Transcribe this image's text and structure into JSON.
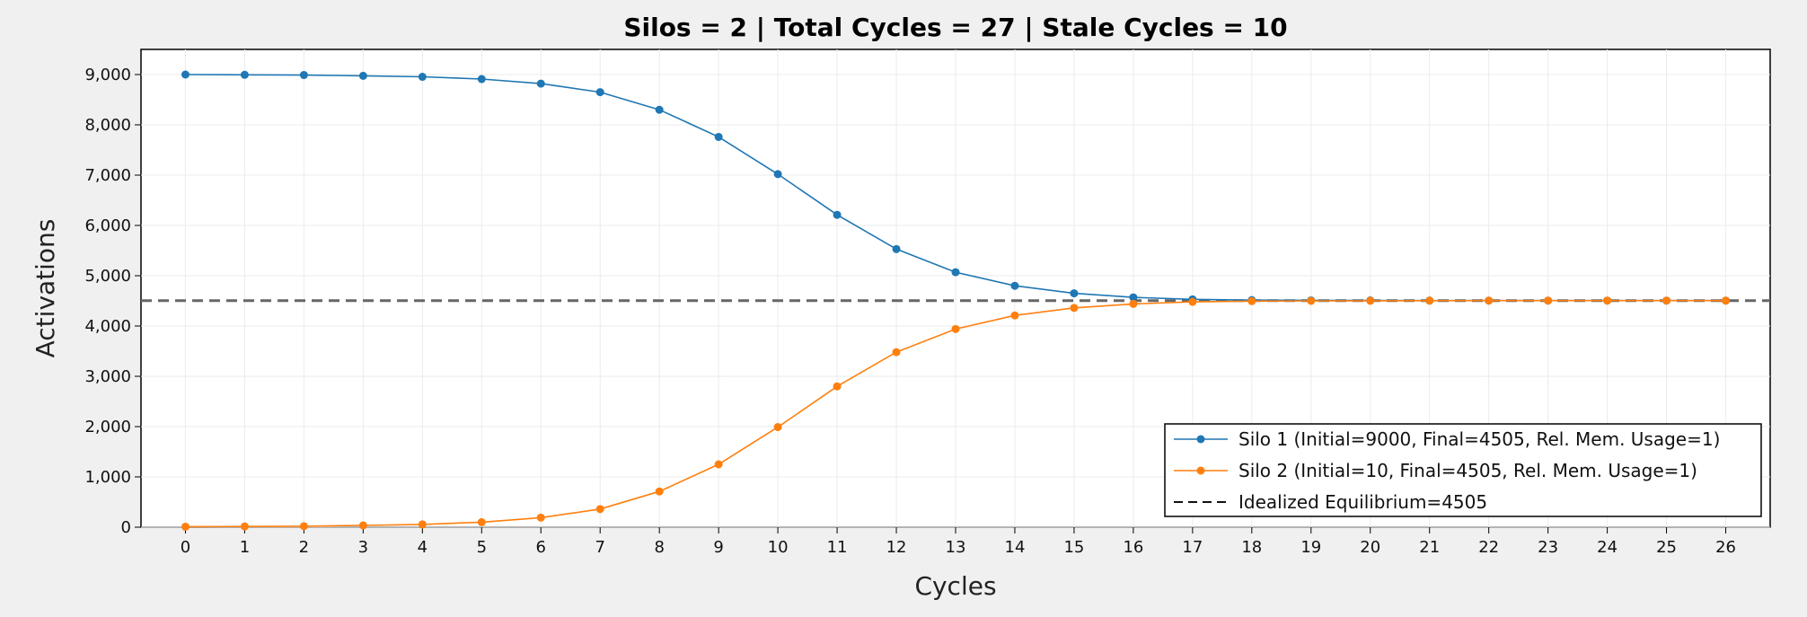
{
  "chart_data": {
    "type": "line",
    "title": "Silos = 2 | Total Cycles = 27 | Stale Cycles = 10",
    "xlabel": "Cycles",
    "ylabel": "Activations",
    "xlim": [
      -0.75,
      26.75
    ],
    "ylim": [
      0,
      9500
    ],
    "x_ticks": [
      0,
      1,
      2,
      3,
      4,
      5,
      6,
      7,
      8,
      9,
      10,
      11,
      12,
      13,
      14,
      15,
      16,
      17,
      18,
      19,
      20,
      21,
      22,
      23,
      24,
      25,
      26
    ],
    "y_ticks": [
      0,
      1000,
      2000,
      3000,
      4000,
      5000,
      6000,
      7000,
      8000,
      9000
    ],
    "y_tick_labels": [
      "0",
      "1,000",
      "2,000",
      "3,000",
      "4,000",
      "5,000",
      "6,000",
      "7,000",
      "8,000",
      "9,000"
    ],
    "grid": true,
    "legend_position": "bottom-right",
    "x": [
      0,
      1,
      2,
      3,
      4,
      5,
      6,
      7,
      8,
      9,
      10,
      11,
      12,
      13,
      14,
      15,
      16,
      17,
      18,
      19,
      20,
      21,
      22,
      23,
      24,
      25,
      26
    ],
    "series": [
      {
        "name": "Silo 1 (Initial=9000, Final=4505, Rel. Mem. Usage=1)",
        "color": "#1f77b4",
        "values": [
          9000,
          8995,
          8990,
          8975,
          8955,
          8910,
          8820,
          8650,
          8300,
          7760,
          7020,
          6210,
          5530,
          5070,
          4800,
          4650,
          4570,
          4530,
          4515,
          4510,
          4508,
          4506,
          4505,
          4505,
          4505,
          4505,
          4505
        ]
      },
      {
        "name": "Silo 2 (Initial=10, Final=4505, Rel. Mem. Usage=1)",
        "color": "#ff7f0e",
        "values": [
          10,
          15,
          20,
          35,
          55,
          100,
          190,
          360,
          710,
          1250,
          1990,
          2800,
          3480,
          3940,
          4210,
          4360,
          4440,
          4480,
          4495,
          4500,
          4502,
          4504,
          4505,
          4505,
          4505,
          4505,
          4505
        ]
      }
    ],
    "reference_lines": [
      {
        "name": "Idealized Equilibrium=4505",
        "y": 4505,
        "color": "#666666",
        "style": "dashed"
      }
    ]
  }
}
